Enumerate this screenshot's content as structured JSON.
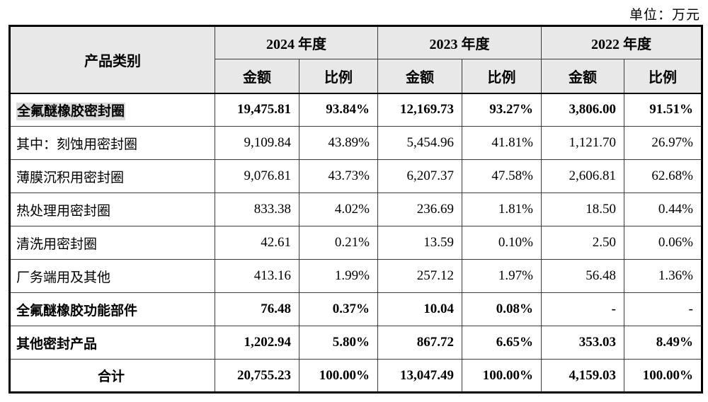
{
  "unit_label": "单位：万元",
  "colors": {
    "header_bg": "#e8e8e8",
    "highlight_bg": "#dcdcdc",
    "border_inner": "#3a3a3a",
    "border_outer": "#000000"
  },
  "table": {
    "category_header": "产品类别",
    "year_groups": [
      {
        "label": "2024 年度"
      },
      {
        "label": "2023 年度"
      },
      {
        "label": "2022 年度"
      }
    ],
    "sub_headers": {
      "amount": "金额",
      "ratio": "比例"
    },
    "rows": [
      {
        "label": "全氟醚橡胶密封圈",
        "bold": true,
        "highlight": true,
        "center": false,
        "values": [
          "19,475.81",
          "93.84%",
          "12,169.73",
          "93.27%",
          "3,806.00",
          "91.51%"
        ]
      },
      {
        "label": "其中：刻蚀用密封圈",
        "bold": false,
        "highlight": false,
        "center": false,
        "values": [
          "9,109.84",
          "43.89%",
          "5,454.96",
          "41.81%",
          "1,121.70",
          "26.97%"
        ]
      },
      {
        "label": "薄膜沉积用密封圈",
        "bold": false,
        "highlight": false,
        "center": false,
        "values": [
          "9,076.81",
          "43.73%",
          "6,207.37",
          "47.58%",
          "2,606.81",
          "62.68%"
        ]
      },
      {
        "label": "热处理用密封圈",
        "bold": false,
        "highlight": false,
        "center": false,
        "values": [
          "833.38",
          "4.02%",
          "236.69",
          "1.81%",
          "18.50",
          "0.44%"
        ]
      },
      {
        "label": "清洗用密封圈",
        "bold": false,
        "highlight": false,
        "center": false,
        "values": [
          "42.61",
          "0.21%",
          "13.59",
          "0.10%",
          "2.50",
          "0.06%"
        ]
      },
      {
        "label": "厂务端用及其他",
        "bold": false,
        "highlight": false,
        "center": false,
        "values": [
          "413.16",
          "1.99%",
          "257.12",
          "1.97%",
          "56.48",
          "1.36%"
        ]
      },
      {
        "label": "全氟醚橡胶功能部件",
        "bold": true,
        "highlight": false,
        "center": false,
        "values": [
          "76.48",
          "0.37%",
          "10.04",
          "0.08%",
          "-",
          "-"
        ]
      },
      {
        "label": "其他密封产品",
        "bold": true,
        "highlight": false,
        "center": false,
        "values": [
          "1,202.94",
          "5.80%",
          "867.72",
          "6.65%",
          "353.03",
          "8.49%"
        ]
      },
      {
        "label": "合计",
        "bold": true,
        "highlight": false,
        "center": true,
        "values": [
          "20,755.23",
          "100.00%",
          "13,047.49",
          "100.00%",
          "4,159.03",
          "100.00%"
        ]
      }
    ]
  }
}
